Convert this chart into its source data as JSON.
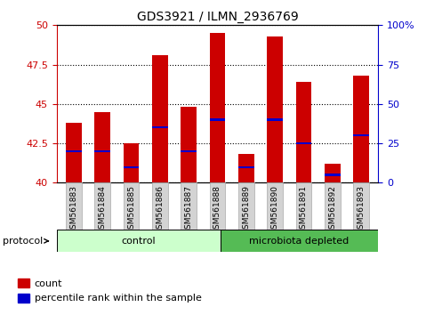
{
  "title": "GDS3921 / ILMN_2936769",
  "samples": [
    "GSM561883",
    "GSM561884",
    "GSM561885",
    "GSM561886",
    "GSM561887",
    "GSM561888",
    "GSM561889",
    "GSM561890",
    "GSM561891",
    "GSM561892",
    "GSM561893"
  ],
  "counts": [
    43.8,
    44.5,
    42.5,
    48.1,
    44.8,
    49.5,
    41.8,
    49.3,
    46.4,
    41.2,
    46.8
  ],
  "percentile_ranks": [
    20,
    20,
    10,
    35,
    20,
    40,
    10,
    40,
    25,
    5,
    30
  ],
  "groups": [
    "control",
    "control",
    "control",
    "control",
    "control",
    "control",
    "microbiota depleted",
    "microbiota depleted",
    "microbiota depleted",
    "microbiota depleted",
    "microbiota depleted"
  ],
  "ymin": 40,
  "ymax": 50,
  "y2min": 0,
  "y2max": 100,
  "bar_color": "#cc0000",
  "percentile_color": "#0000cc",
  "control_color": "#ccffcc",
  "microbiota_color": "#55bb55",
  "tick_color_left": "#cc0000",
  "tick_color_right": "#0000cc",
  "bg_color": "#ffffff",
  "grid_color": "#000000",
  "bar_width": 0.55,
  "n_control": 6,
  "n_micro": 5
}
